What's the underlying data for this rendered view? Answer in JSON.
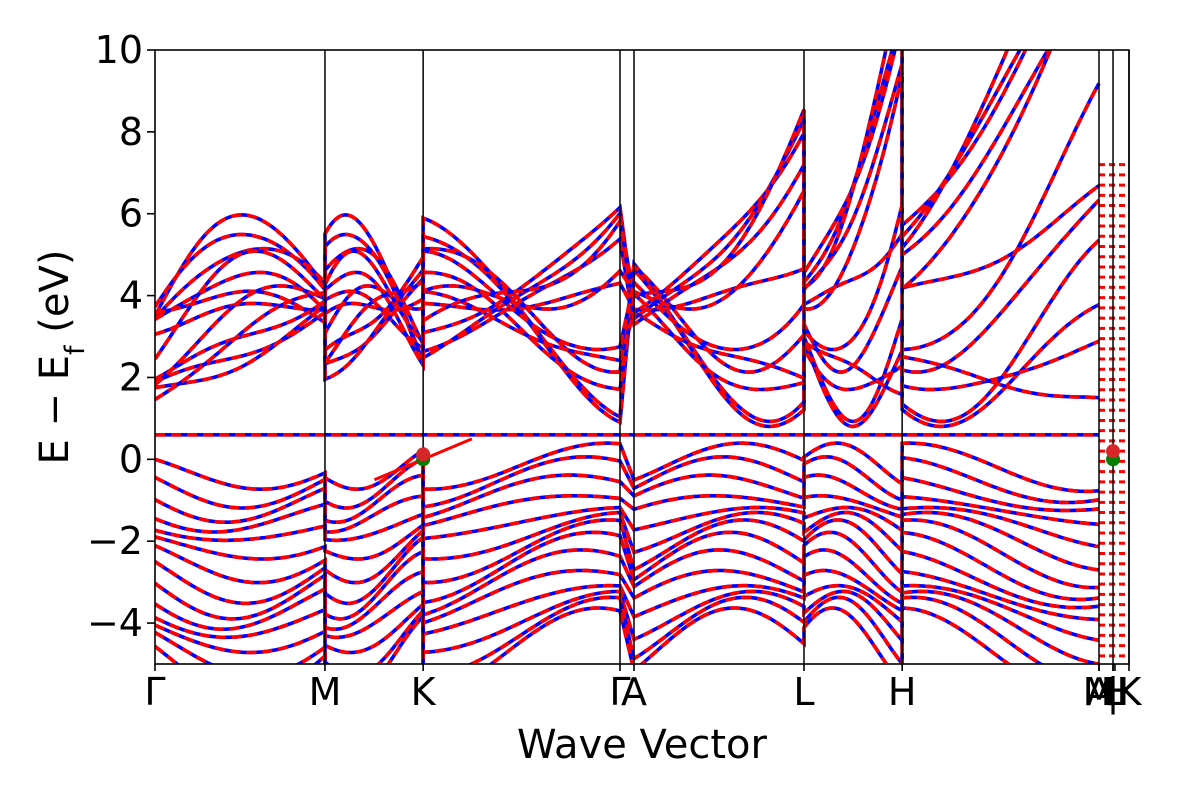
{
  "chart_data": {
    "type": "line",
    "xlabel": "Wave Vector",
    "ylabel_main": "E − E",
    "ylabel_sub": "f",
    "ylabel_unit": " (eV)",
    "ylim": [
      -5,
      10
    ],
    "yticks": [
      {
        "value": -4,
        "label": "−4"
      },
      {
        "value": -2,
        "label": "−2"
      },
      {
        "value": 0,
        "label": "0"
      },
      {
        "value": 2,
        "label": "2"
      },
      {
        "value": 4,
        "label": "4"
      },
      {
        "value": 6,
        "label": "6"
      },
      {
        "value": 8,
        "label": "8"
      },
      {
        "value": 10,
        "label": "10"
      }
    ],
    "xlim": [
      0,
      1
    ],
    "kpath_labels": [
      {
        "label": "Γ",
        "x": 0.0
      },
      {
        "label": "M",
        "x": 0.1745
      },
      {
        "label": "K",
        "x": 0.2753
      },
      {
        "label": "Γ",
        "x": 0.4774
      },
      {
        "label": "A",
        "x": 0.4918
      },
      {
        "label": "L",
        "x": 0.6663
      },
      {
        "label": "H",
        "x": 0.7671
      },
      {
        "label": "A",
        "x": 0.9692
      },
      {
        "label": "M",
        "x": 0.9692
      },
      {
        "label": "|",
        "x": 0.9836
      },
      {
        "label": "L",
        "x": 0.9836
      },
      {
        "label": "H",
        "x": 0.9856
      },
      {
        "label": "K",
        "x": 1.0
      }
    ],
    "kpath_divisions": [
      0.1745,
      0.2753,
      0.4774,
      0.4918,
      0.6663,
      0.7671,
      0.9692,
      0.9836,
      1.0
    ],
    "flat_band_energy": 0.6,
    "series": [
      {
        "color": "#0000ff",
        "style": "solid"
      },
      {
        "color": "#ff0000",
        "style": "dashed"
      }
    ],
    "markers": [
      {
        "x": 0.2753,
        "y": 0.0,
        "color": "#008000"
      },
      {
        "x": 0.2753,
        "y": 0.12,
        "color": "#d62728"
      },
      {
        "x": 0.9836,
        "y": 0.0,
        "color": "#008000"
      },
      {
        "x": 0.9836,
        "y": 0.2,
        "color": "#d62728"
      }
    ]
  }
}
